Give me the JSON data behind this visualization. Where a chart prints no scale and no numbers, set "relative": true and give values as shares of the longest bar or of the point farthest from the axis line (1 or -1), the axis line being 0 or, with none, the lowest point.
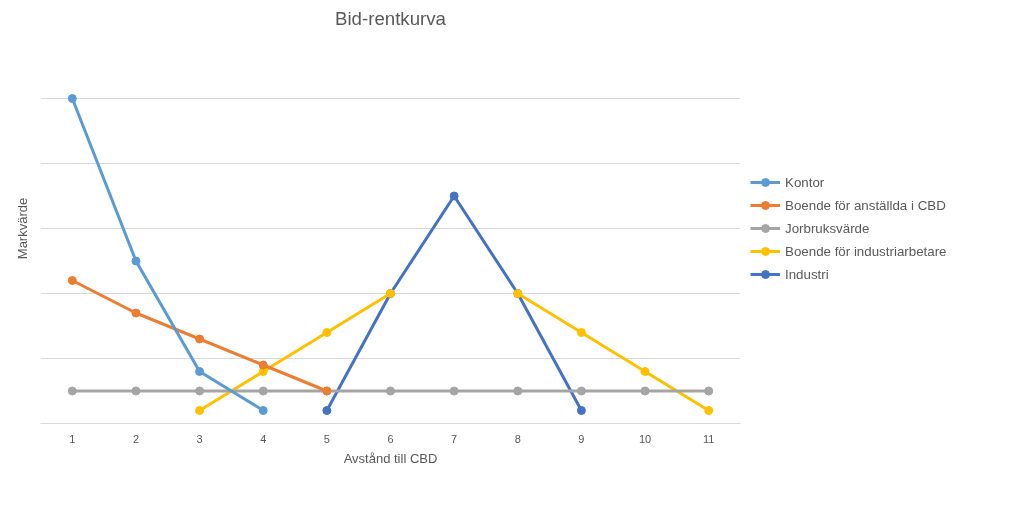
{
  "chart_data": {
    "type": "line",
    "title": "Bid-rentkurva",
    "xlabel": "Avstånd till CBD",
    "ylabel": "Markvärde",
    "categories": [
      "1",
      "2",
      "3",
      "4",
      "5",
      "6",
      "7",
      "8",
      "9",
      "10",
      "11"
    ],
    "relative": true,
    "grid": "y",
    "legend": "right",
    "marker": "circle",
    "line_style": "solid",
    "series": [
      {
        "name": "Kontor",
        "color": "#5b9bd5",
        "values": [
          1,
          0.5,
          0.16,
          0.04,
          null,
          null,
          null,
          null,
          null,
          null,
          null
        ]
      },
      {
        "name": "Boende för anställda i CBD",
        "color": "#ed7d31",
        "values": [
          0.44,
          0.34,
          0.26,
          0.18,
          0.1,
          null,
          null,
          null,
          null,
          null,
          null
        ]
      },
      {
        "name": "Jorbruksvärde",
        "color": "#a5a5a5",
        "values": [
          0.1,
          0.1,
          0.1,
          0.1,
          0.1,
          0.1,
          0.1,
          0.1,
          0.1,
          0.1,
          0.1
        ]
      },
      {
        "name": "Boende för industriarbetare",
        "color": "#ffc000",
        "values": [
          null,
          null,
          0.04,
          0.16,
          0.28,
          0.4,
          null,
          0.4,
          0.28,
          0.16,
          0.04
        ]
      },
      {
        "name": "Industri",
        "color": "#4472c4",
        "values": [
          null,
          null,
          null,
          null,
          0.04,
          0.4,
          0.7,
          0.4,
          0.04,
          null,
          null
        ]
      }
    ]
  }
}
